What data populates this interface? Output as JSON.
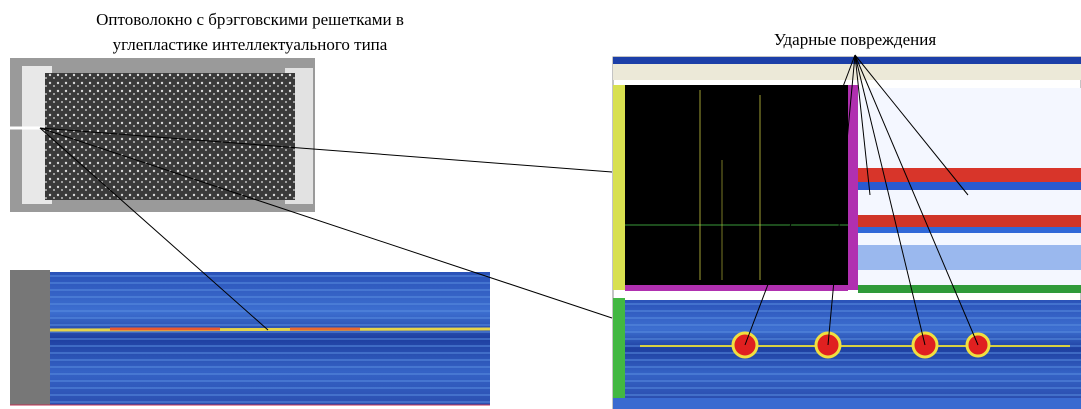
{
  "header": {
    "left_caption": [
      "Оптоволокно с брэгговскими решетками в",
      "углепластике интеллектуального типа"
    ],
    "right_caption": "Ударные повреждения"
  }
}
